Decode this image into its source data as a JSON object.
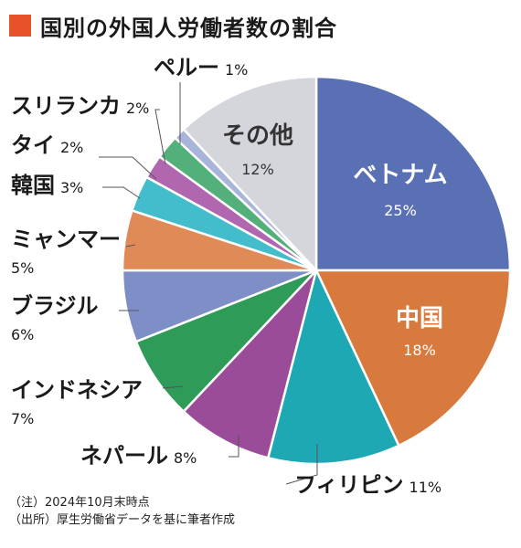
{
  "chart_data": {
    "type": "pie",
    "title": "国別の外国人労働者数の割合",
    "categories": [
      "ベトナム",
      "中国",
      "フィリピン",
      "ネパール",
      "インドネシア",
      "ブラジル",
      "ミャンマー",
      "韓国",
      "タイ",
      "スリランカ",
      "ペルー",
      "その他"
    ],
    "values": [
      25,
      18,
      11,
      8,
      7,
      6,
      5,
      3,
      2,
      2,
      1,
      12
    ],
    "value_labels": [
      "25%",
      "18%",
      "11%",
      "8%",
      "7%",
      "6%",
      "5%",
      "3%",
      "2%",
      "2%",
      "1%",
      "12%"
    ],
    "colors": [
      "#5a70b5",
      "#d87a3e",
      "#1ea8b3",
      "#9b4c98",
      "#2f9b58",
      "#7e8fc7",
      "#e08a58",
      "#43bccb",
      "#b067b0",
      "#54b07a",
      "#a9b4da",
      "#d4d6dc"
    ],
    "start_angle_deg": 0,
    "direction": "clockwise",
    "label_placement": [
      "inside",
      "inside",
      "outside",
      "outside",
      "outside",
      "outside",
      "outside",
      "outside",
      "outside",
      "outside",
      "outside",
      "inside"
    ]
  },
  "footnotes": [
    "（注）2024年10月末時点",
    "（出所）厚生労働省データを基に筆者作成"
  ],
  "colors": {
    "title_marker": "#e8522a",
    "leader_line": "#555555",
    "inside_label": "#ffffff",
    "inside_label_dark": "#333333"
  }
}
